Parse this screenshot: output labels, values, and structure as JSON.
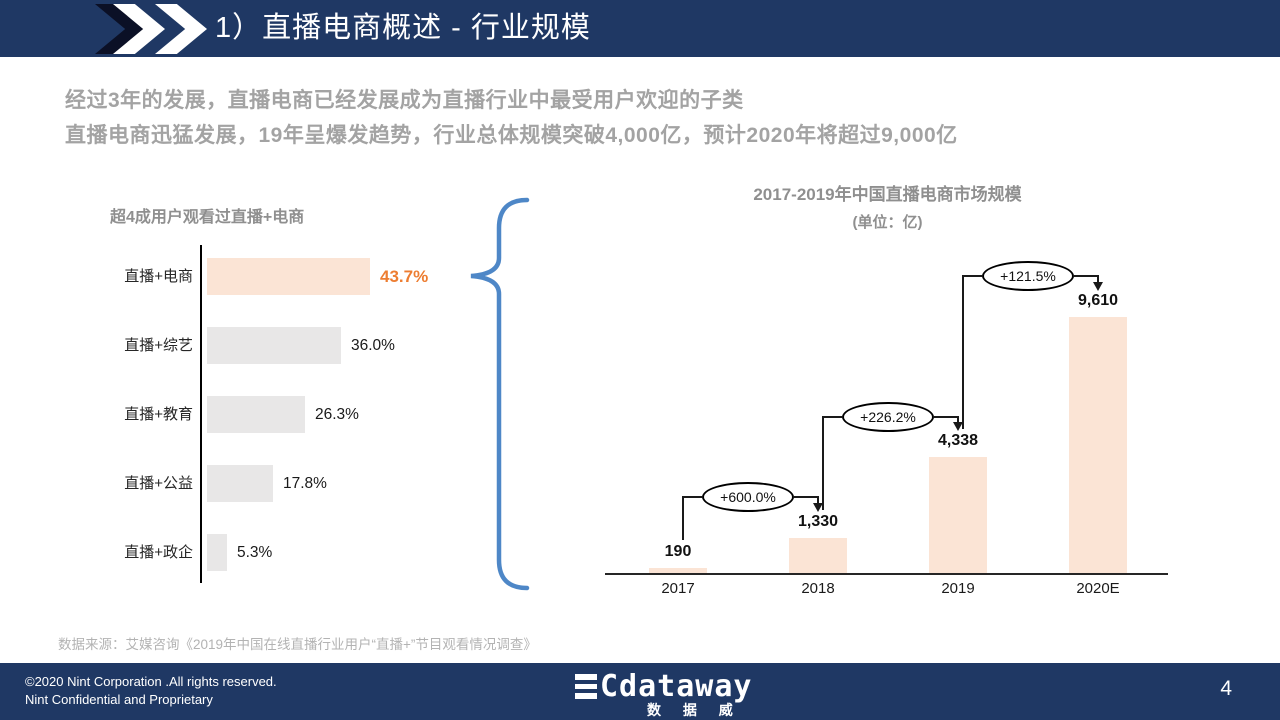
{
  "header": {
    "title": "1）直播电商概述 - 行业规模"
  },
  "subtitles": {
    "line1": "经过3年的发展，直播电商已经发展成为直播行业中最受用户欢迎的子类",
    "line2": "直播电商迅猛发展，19年呈爆发趋势，行业总体规模突破4,000亿，预计2020年将超过9,000亿"
  },
  "chart_data": [
    {
      "type": "bar",
      "orientation": "horizontal",
      "title": "超4成用户观看过直播+电商",
      "categories": [
        "直播+电商",
        "直播+综艺",
        "直播+教育",
        "直播+公益",
        "直播+政企"
      ],
      "values": [
        43.7,
        36.0,
        26.3,
        17.8,
        5.3
      ],
      "value_labels": [
        "43.7%",
        "36.0%",
        "26.3%",
        "17.8%",
        "5.3%"
      ],
      "highlight_index": 0,
      "xlim": [
        0,
        50
      ],
      "grid": false,
      "legend": "none"
    },
    {
      "type": "bar",
      "orientation": "vertical",
      "title": "2017-2019年中国直播电商市场规模",
      "subtitle": "(单位：亿)",
      "categories": [
        "2017",
        "2018",
        "2019",
        "2020E"
      ],
      "values": [
        190,
        1330,
        4338,
        9610
      ],
      "value_labels": [
        "190",
        "1,330",
        "4,338",
        "9,610"
      ],
      "growth_annotations": [
        "+600.0%",
        "+226.2%",
        "+121.5%"
      ],
      "ylim": [
        0,
        9610
      ],
      "grid": false,
      "legend": "none"
    }
  ],
  "source_note": "数据来源：艾媒咨询《2019年中国在线直播行业用户“直播+”节目观看情况调查》",
  "footer": {
    "copyright_line1": "©2020 Nint Corporation .All rights reserved.",
    "copyright_line2": "Nint Confidential and Proprietary",
    "logo_main": "Cdataway",
    "logo_sub": "数 据 威",
    "page_number": "4"
  },
  "colors": {
    "navy": "#1F3864",
    "accent_orange": "#ED7D31",
    "bar_peach": "#FBE4D5",
    "bar_gray": "#E8E7E7",
    "brace_blue": "#4E87C7",
    "title_gray": "#8F8F8F",
    "subtitle_gray": "#A3A3A3",
    "source_gray": "#B3B3B3"
  }
}
